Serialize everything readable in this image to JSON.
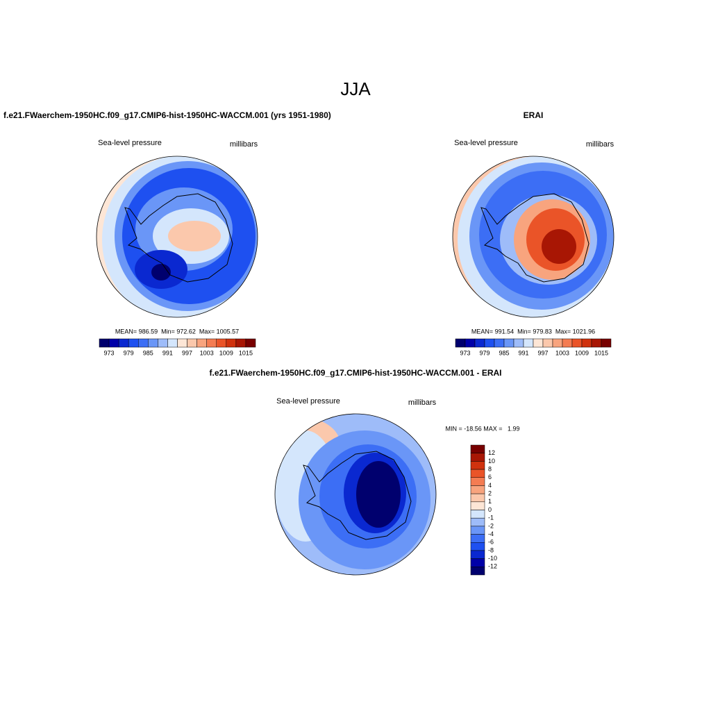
{
  "title": "JJA",
  "panels": [
    {
      "title": "f.e21.FWaerchem-1950HC.f09_g17.CMIP6-hist-1950HC-WACCM.001 (yrs 1951-1980)",
      "left_label": "Sea-level pressure",
      "right_label": "millibars",
      "stats": "MEAN= 986.59  Min= 972.62  Max= 1005.57",
      "colorbar": {
        "labels": [
          973,
          979,
          985,
          991,
          997,
          1003,
          1009,
          1015
        ],
        "colors": [
          "#00006e",
          "#0000a8",
          "#0a28d0",
          "#1e50f0",
          "#3c6ef5",
          "#6a96f7",
          "#9ebcf9",
          "#d4e6fc",
          "#fde6d6",
          "#fbc8ac",
          "#f8a47e",
          "#f47c52",
          "#ea5428",
          "#d0320e",
          "#a81604",
          "#780000"
        ]
      }
    },
    {
      "title": "ERAI",
      "left_label": "Sea-level pressure",
      "right_label": "millibars",
      "stats": "MEAN= 991.54  Min= 979.83  Max= 1021.96",
      "colorbar": {
        "labels": [
          973,
          979,
          985,
          991,
          997,
          1003,
          1009,
          1015
        ],
        "colors": [
          "#00006e",
          "#0000a8",
          "#0a28d0",
          "#1e50f0",
          "#3c6ef5",
          "#6a96f7",
          "#9ebcf9",
          "#d4e6fc",
          "#fde6d6",
          "#fbc8ac",
          "#f8a47e",
          "#f47c52",
          "#ea5428",
          "#d0320e",
          "#a81604",
          "#780000"
        ]
      }
    },
    {
      "title": "f.e21.FWaerchem-1950HC.f09_g17.CMIP6-hist-1950HC-WACCM.001 - ERAI",
      "left_label": "Sea-level pressure",
      "right_label": "millibars",
      "stats": "MIN = -18.56 MAX =   1.99",
      "colorbar": {
        "labels": [
          12,
          10,
          8,
          6,
          4,
          2,
          1,
          0,
          -1,
          -2,
          -4,
          -6,
          -8,
          -10,
          -12
        ],
        "colors": [
          "#780000",
          "#a81604",
          "#d0320e",
          "#ea5428",
          "#f47c52",
          "#f8a47e",
          "#fbc8ac",
          "#fde6d6",
          "#d4e6fc",
          "#9ebcf9",
          "#6a96f7",
          "#3c6ef5",
          "#1e50f0",
          "#0a28d0",
          "#0000a8",
          "#00006e"
        ]
      }
    }
  ]
}
